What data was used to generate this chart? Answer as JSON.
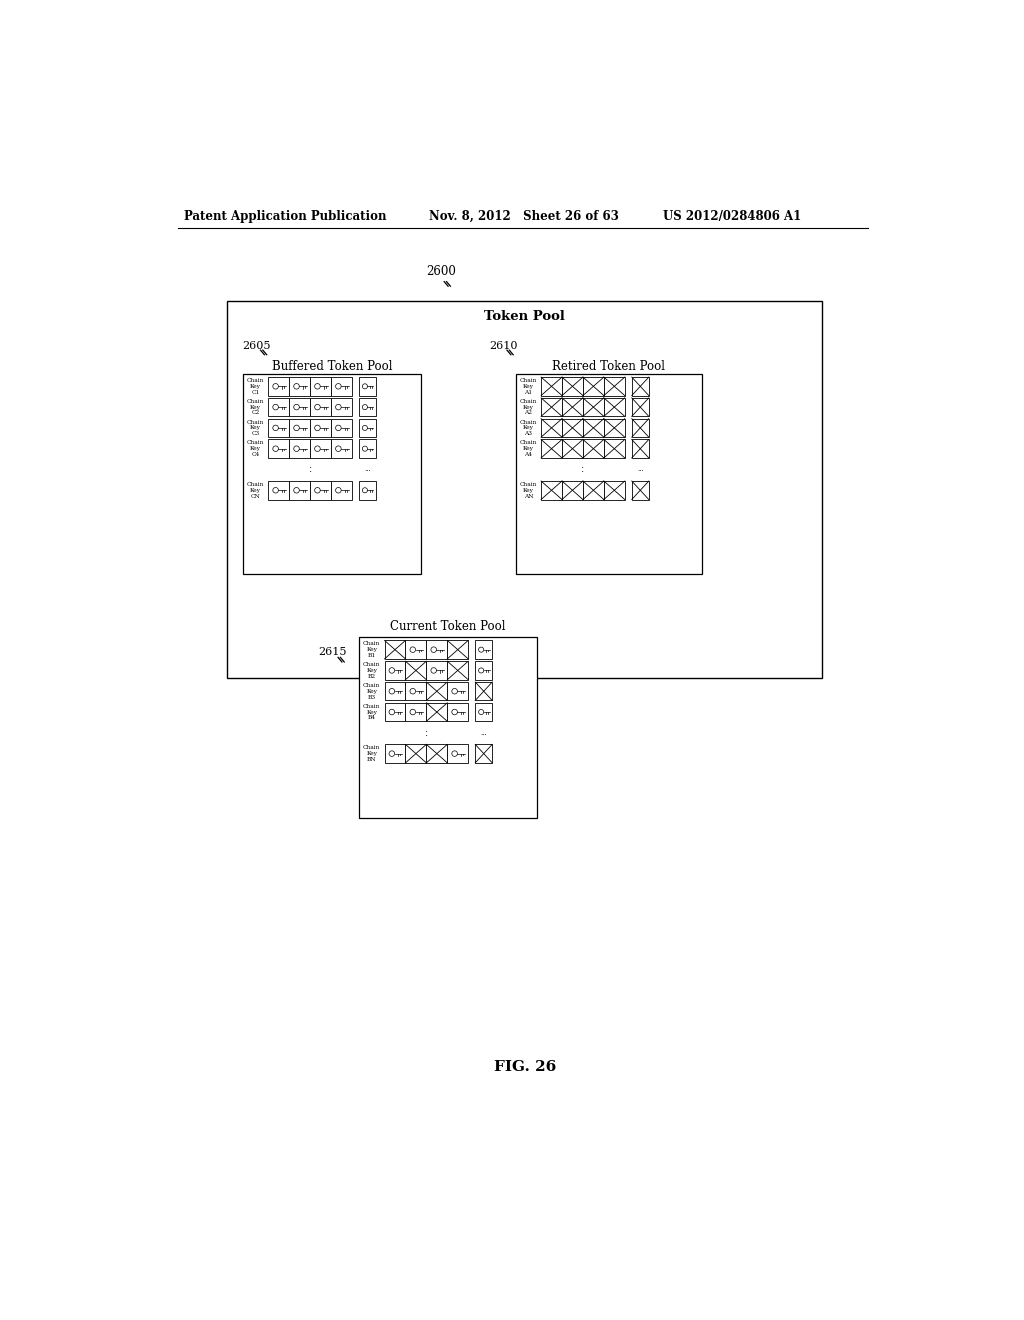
{
  "bg_color": "#ffffff",
  "header_left": "Patent Application Publication",
  "header_mid": "Nov. 8, 2012   Sheet 26 of 63",
  "header_right": "US 2012/0284806 A1",
  "fig_label": "FIG. 26",
  "outer_label": "2600",
  "outer_title": "Token Pool",
  "buffered_label": "2605",
  "buffered_title": "Buffered Token Pool",
  "retired_label": "2610",
  "retired_title": "Retired Token Pool",
  "current_label": "2615",
  "current_title": "Current Token Pool",
  "chain_keys_buffered": [
    "Chain\nKey\nC1",
    "Chain\nKey\nC2",
    "Chain\nKey\nC3",
    "Chain\nKey\nC4",
    "Chain\nKey\nCN"
  ],
  "chain_keys_retired": [
    "Chain\nKey\nA1",
    "Chain\nKey\nA2",
    "Chain\nKey\nA3",
    "Chain\nKey\nA4",
    "Chain\nKey\nAN"
  ],
  "chain_keys_current": [
    "Chain\nKey\nB1",
    "Chain\nKey\nB2",
    "Chain\nKey\nB3",
    "Chain\nKey\nB4",
    "Chain\nKey\nBN"
  ],
  "buf_crossed": [
    [
      false,
      false,
      false,
      false
    ],
    [
      false,
      false,
      false,
      false
    ],
    [
      false,
      false,
      false,
      false
    ],
    [
      false,
      false,
      false,
      false
    ],
    [
      false,
      false,
      false,
      false
    ]
  ],
  "buf_sep_crossed": [
    false,
    false,
    false,
    false,
    false
  ],
  "ret_crossed": [
    [
      true,
      false,
      true,
      false
    ],
    [
      false,
      true,
      false,
      true
    ],
    [
      true,
      false,
      true,
      false
    ],
    [
      false,
      true,
      false,
      true
    ],
    [
      true,
      false,
      true,
      false
    ]
  ],
  "ret_sep_crossed": [
    true,
    false,
    true,
    false,
    true
  ],
  "cur_crossed": [
    [
      true,
      false,
      false,
      true
    ],
    [
      false,
      true,
      false,
      true
    ],
    [
      false,
      false,
      true,
      false
    ],
    [
      false,
      false,
      true,
      false
    ],
    [
      false,
      true,
      true,
      false
    ]
  ],
  "cur_sep_crossed": [
    false,
    false,
    true,
    false,
    true
  ]
}
